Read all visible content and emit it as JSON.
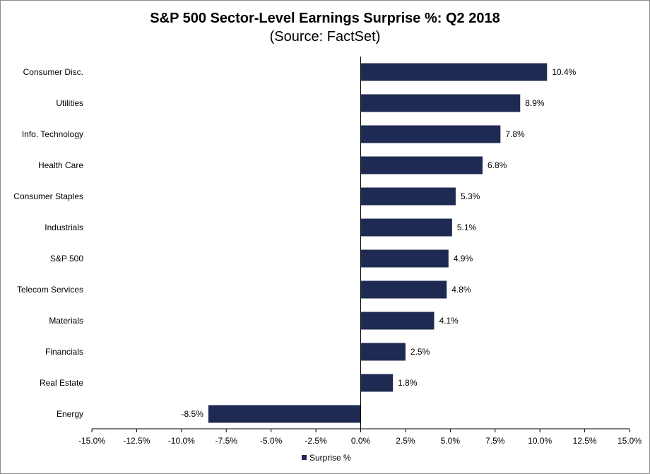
{
  "chart_data": {
    "type": "bar",
    "orientation": "horizontal",
    "title": "S&P 500 Sector-Level Earnings Surprise %: Q2 2018",
    "subtitle": "(Source: FactSet)",
    "categories": [
      "Consumer Disc.",
      "Utilities",
      "Info. Technology",
      "Health Care",
      "Consumer Staples",
      "Industrials",
      "S&P 500",
      "Telecom Services",
      "Materials",
      "Financials",
      "Real Estate",
      "Energy"
    ],
    "series": [
      {
        "name": "Surprise %",
        "values": [
          10.4,
          8.9,
          7.8,
          6.8,
          5.3,
          5.1,
          4.9,
          4.8,
          4.1,
          2.5,
          1.8,
          -8.5
        ],
        "labels": [
          "10.4%",
          "8.9%",
          "7.8%",
          "6.8%",
          "5.3%",
          "5.1%",
          "4.9%",
          "4.8%",
          "4.1%",
          "2.5%",
          "1.8%",
          "-8.5%"
        ]
      }
    ],
    "xlim": [
      -15,
      15
    ],
    "xticks": [
      -15,
      -12.5,
      -10,
      -7.5,
      -5,
      -2.5,
      0,
      2.5,
      5,
      7.5,
      10,
      12.5,
      15
    ],
    "xtick_labels": [
      "-15.0%",
      "-12.5%",
      "-10.0%",
      "-7.5%",
      "-5.0%",
      "-2.5%",
      "0.0%",
      "2.5%",
      "5.0%",
      "7.5%",
      "10.0%",
      "12.5%",
      "15.0%"
    ],
    "grid": false,
    "legend_position": "bottom-center",
    "bar_color": "#1f2a52"
  }
}
